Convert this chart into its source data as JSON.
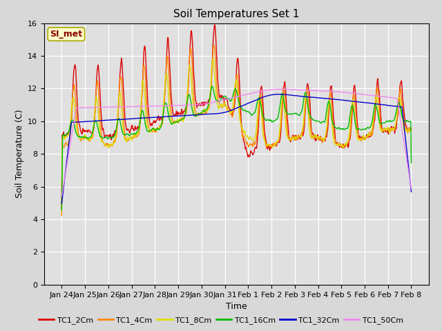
{
  "title": "Soil Temperatures Set 1",
  "xlabel": "Time",
  "ylabel": "Soil Temperature (C)",
  "ylim": [
    0,
    16
  ],
  "yticks": [
    0,
    2,
    4,
    6,
    8,
    10,
    12,
    14,
    16
  ],
  "bg_color": "#d8d8d8",
  "plot_bg_color": "#e0e0e0",
  "annotation_text": "SI_met",
  "annotation_bg": "#ffffcc",
  "annotation_edge": "#aaaa00",
  "annotation_text_color": "#880000",
  "colors": {
    "TC1_2Cm": "#dd0000",
    "TC1_4Cm": "#ff8800",
    "TC1_8Cm": "#dddd00",
    "TC1_16Cm": "#00bb00",
    "TC1_32Cm": "#0000cc",
    "TC1_50Cm": "#ee88ee"
  },
  "line_width": 1.0,
  "xtick_labels": [
    "Jan 24",
    "Jan 25",
    "Jan 26",
    "Jan 27",
    "Jan 28",
    "Jan 29",
    "Jan 30",
    "Jan 31",
    "Feb 1",
    "Feb 2",
    "Feb 3",
    "Feb 4",
    "Feb 5",
    "Feb 6",
    "Feb 7",
    "Feb 8"
  ]
}
